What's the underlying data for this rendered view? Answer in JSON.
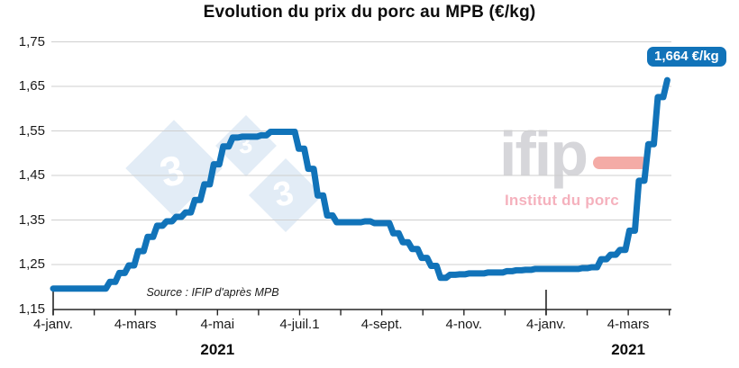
{
  "title": "Evolution du prix du porc au MPB (€/kg)",
  "source": "Source : IFIP d'après MPB",
  "callout": {
    "text": "1,664 €/kg",
    "bg": "#1173b9"
  },
  "watermarks": {
    "pig333": {
      "threes": [
        "3",
        "3",
        "3"
      ]
    },
    "ifip": {
      "name": "ifip",
      "subtitle": "Institut du porc"
    }
  },
  "colors": {
    "line": "#1173b9",
    "grid": "#cfcfcf",
    "axis": "#262626",
    "callout_bg": "#1173b9",
    "watermark_blue": "#dce8f5",
    "watermark_gray": "#d3d3d8",
    "watermark_red": "#f2a39d",
    "watermark_pink": "#f5aab4"
  },
  "chart_data": {
    "type": "line",
    "title": "Evolution du prix du porc au MPB (€/kg)",
    "unit": "€/kg",
    "start_date": "2021-01-04",
    "interval": "weekly",
    "ylim": [
      1.15,
      1.75
    ],
    "y_values": [
      1.15,
      1.25,
      1.35,
      1.45,
      1.55,
      1.65,
      1.75
    ],
    "y_ticks": [
      "1,15",
      "1,25",
      "1,35",
      "1,45",
      "1,55",
      "1,65",
      "1,75"
    ],
    "x_tick_labels": [
      "4-janv.",
      "4-mars",
      "4-mai",
      "4-juil.1",
      "4-sept.",
      "4-nov.",
      "4-janv.",
      "4-mars"
    ],
    "x_tick_months": [
      0,
      2,
      4,
      6,
      8,
      10,
      12,
      14
    ],
    "year_labels": [
      "2021",
      "2021"
    ],
    "year_label_months": [
      4,
      14
    ],
    "year_tick_months": [
      0,
      12
    ],
    "grid": true,
    "legend": "none",
    "last_value_label": "1,664 €/kg",
    "values": [
      1.196,
      1.196,
      1.196,
      1.196,
      1.196,
      1.196,
      1.211,
      1.231,
      1.248,
      1.28,
      1.312,
      1.337,
      1.347,
      1.357,
      1.367,
      1.395,
      1.43,
      1.475,
      1.515,
      1.535,
      1.537,
      1.537,
      1.54,
      1.548,
      1.548,
      1.548,
      1.51,
      1.465,
      1.405,
      1.36,
      1.345,
      1.345,
      1.345,
      1.347,
      1.343,
      1.343,
      1.32,
      1.3,
      1.285,
      1.265,
      1.247,
      1.22,
      1.227,
      1.228,
      1.23,
      1.23,
      1.232,
      1.232,
      1.235,
      1.237,
      1.238,
      1.24,
      1.24,
      1.24,
      1.24,
      1.24,
      1.242,
      1.244,
      1.262,
      1.272,
      1.283,
      1.326,
      1.438,
      1.52,
      1.626,
      1.664
    ]
  }
}
